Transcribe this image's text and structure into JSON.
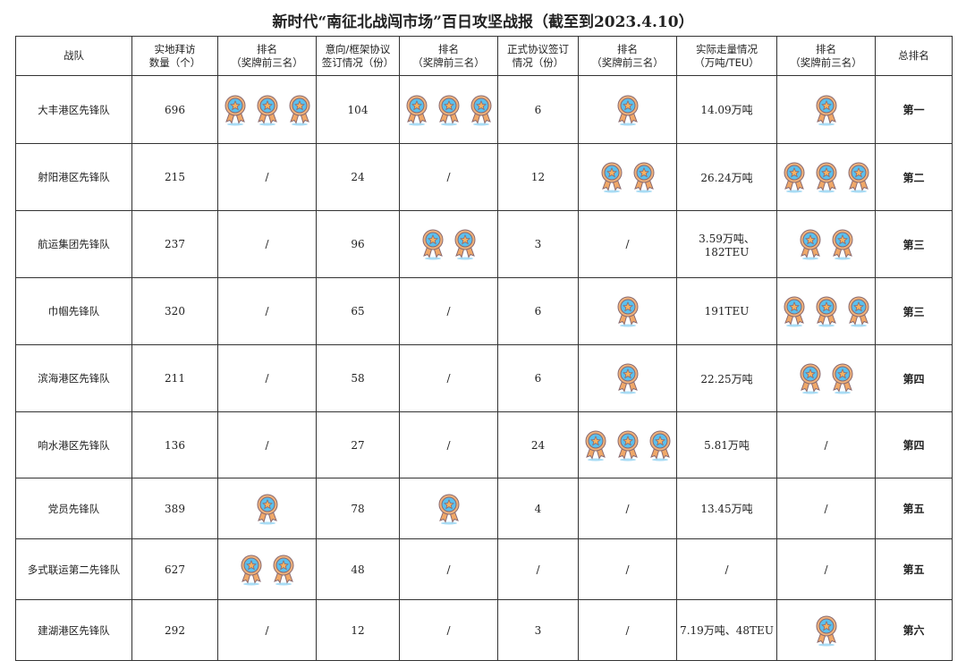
{
  "title": "新时代“南征北战闯市场”百日攻坚战报（截至到2023.4.10）",
  "headers": [
    "战队",
    "实地拜访\n数量（个）",
    "排名\n（奖牌前三名）",
    "意向/框架协议\n签订情况（份）",
    "排名\n（奖牌前三名）",
    "正式协议签订\n情况（份）",
    "排名\n（奖牌前三名）",
    "实际走量情况\n（万吨/TEU）",
    "排名\n（奖牌前三名）",
    "总排名"
  ],
  "icon": "medal-icon",
  "colors": {
    "medal_blue": "#5bc0ee",
    "medal_orange": "#e8a060"
  },
  "rows": [
    {
      "team": "大丰港区先锋队",
      "visits": "696",
      "visit_medals": 3,
      "intent": "104",
      "intent_medals": 3,
      "formal": "6",
      "formal_medals": 1,
      "volume": "14.09万吨",
      "volume_medals": 1,
      "total": "第一"
    },
    {
      "team": "射阳港区先锋队",
      "visits": "215",
      "visit_medals": 0,
      "intent": "24",
      "intent_medals": 0,
      "formal": "12",
      "formal_medals": 2,
      "volume": "26.24万吨",
      "volume_medals": 3,
      "total": "第二"
    },
    {
      "team": "航运集团先锋队",
      "visits": "237",
      "visit_medals": 0,
      "intent": "96",
      "intent_medals": 2,
      "formal": "3",
      "formal_medals": 0,
      "volume": "3.59万吨、182TEU",
      "volume_medals": 2,
      "total": "第三"
    },
    {
      "team": "巾帼先锋队",
      "visits": "320",
      "visit_medals": 0,
      "intent": "65",
      "intent_medals": 0,
      "formal": "6",
      "formal_medals": 1,
      "volume": "191TEU",
      "volume_medals": 3,
      "total": "第三"
    },
    {
      "team": "滨海港区先锋队",
      "visits": "211",
      "visit_medals": 0,
      "intent": "58",
      "intent_medals": 0,
      "formal": "6",
      "formal_medals": 1,
      "volume": "22.25万吨",
      "volume_medals": 2,
      "total": "第四"
    },
    {
      "team": "响水港区先锋队",
      "visits": "136",
      "visit_medals": 0,
      "intent": "27",
      "intent_medals": 0,
      "formal": "24",
      "formal_medals": 3,
      "volume": "5.81万吨",
      "volume_medals": 0,
      "total": "第四"
    },
    {
      "team": "党员先锋队",
      "visits": "389",
      "visit_medals": 1,
      "intent": "78",
      "intent_medals": 1,
      "formal": "4",
      "formal_medals": 0,
      "volume": "13.45万吨",
      "volume_medals": 0,
      "total": "第五"
    },
    {
      "team": "多式联运第二先锋队",
      "visits": "627",
      "visit_medals": 2,
      "intent": "48",
      "intent_medals": 0,
      "formal": "/",
      "formal_medals": 0,
      "volume": "/",
      "volume_medals": 0,
      "total": "第五"
    },
    {
      "team": "建湖港区先锋队",
      "visits": "292",
      "visit_medals": 0,
      "intent": "12",
      "intent_medals": 0,
      "formal": "3",
      "formal_medals": 0,
      "volume": "7.19万吨、48TEU",
      "volume_medals": 1,
      "total": "第六"
    }
  ],
  "empty_mark": "/"
}
